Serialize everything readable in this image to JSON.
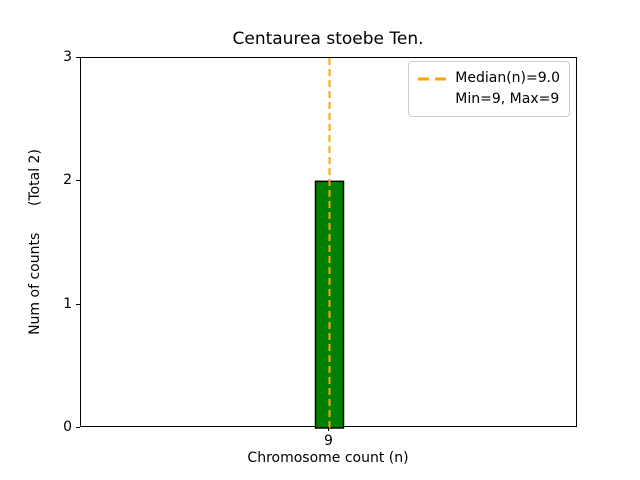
{
  "chart_data": {
    "type": "bar",
    "title": "Centaurea stoebe Ten.",
    "xlabel": "Chromosome count (n)",
    "ylabel": "Num of counts      (Total 2)",
    "categories": [
      9
    ],
    "values": [
      2
    ],
    "total_counts": 2,
    "ylim": [
      0,
      3
    ],
    "yticks": [
      0,
      1,
      2,
      3
    ],
    "grid": false,
    "bar_color": "#008000",
    "bar_edge_color": "#000000",
    "median_line": {
      "x": 9,
      "value": 9.0,
      "color": "#FFA500",
      "style": "dashed"
    },
    "stats": {
      "median": 9.0,
      "min": 9,
      "max": 9
    },
    "legend": {
      "position": "upper-right",
      "entries": [
        {
          "label": "Median(n)=9.0",
          "marker": "orange-dashed-line"
        },
        {
          "label": "Min=9, Max=9",
          "marker": "none"
        }
      ]
    }
  }
}
